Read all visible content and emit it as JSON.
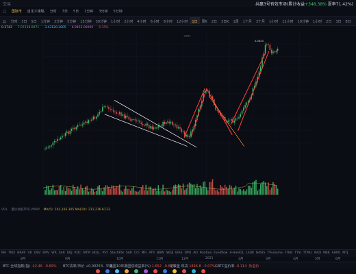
{
  "topbar": {
    "brand": "交易",
    "announcement": "共赢3号有效市场(累计收益",
    "ann_gain": "+348.38%",
    "ann_tail": " 夏率71.42%)"
  },
  "menubar": [
    "□",
    "国际市",
    "自定义策略",
    "分时",
    "3日",
    "5日",
    "1分钟",
    "3分钟",
    "5分钟"
  ],
  "timeframes": {
    "items": [
      "分时",
      "3日",
      "5日",
      "1分钟",
      "3分钟",
      "5分钟",
      "15分钟",
      "30分钟",
      "1小时",
      "2小时",
      "4小时",
      "6小时",
      "8小时",
      "12小时",
      "1日",
      "周K",
      "2日",
      "3日K",
      "1周",
      "1个月",
      "3个月",
      "1小时",
      "12小时",
      "10分钟",
      "1小时",
      "2日",
      "3日",
      "8日"
    ],
    "active_index": 14
  },
  "indicator_row": [
    "0.3743",
    "7.07110.0071",
    "3.43120.3005",
    "6.9453.00000",
    "6.35%"
  ],
  "chart": {
    "peak_label": "0.0824",
    "year_label": "2021"
  },
  "volume_header": {
    "left": "VOL",
    "middle": "量价加权平均 VWAP",
    "ma": "MA(5): 161,103.305  MA(10): 211,216.6113"
  },
  "indicator_tabs": [
    "MA",
    "TRIX",
    "BRAR",
    "VR",
    "OBV",
    "EMV",
    "WR",
    "SAR",
    "KDJ",
    "ROC",
    "MTM",
    "BOLL",
    "PSY",
    "StochRSI",
    "SAR",
    "CCI",
    "MFI",
    "ATR",
    "BBW",
    "SKDJ",
    "BIAS",
    "DPO",
    "AO",
    "Position",
    "Fundflow",
    "A-HwVOL",
    "LSUR",
    "BASIS",
    "TVvolume",
    "FTBB",
    "TTSI",
    "TTMU",
    "AVDI",
    "MIJK",
    "AHPO",
    "MTJ"
  ],
  "months": [
    "8月",
    "9月",
    "10月",
    "11月",
    "12月",
    "2021",
    "2月",
    "3月",
    "4月",
    "5月",
    "6月"
  ],
  "statusbar": [
    {
      "label": "BTC 全球指数(指)",
      "value": "-42.46",
      "pct": "-0.69%",
      "dir": "down"
    },
    {
      "label": "BTC贵率/市价",
      "value": "+0.0025%",
      "pct": "平稳",
      "dir": "flat"
    },
    {
      "label": "美国10年期国债收益率(%)",
      "value": "1.652",
      "pct": "-0.62%",
      "dir": "down"
    },
    {
      "label": "伦敦金 现货",
      "value": "1896.8",
      "pct": "-0.07%",
      "dir": "down"
    },
    {
      "label": "GBTC溢价率",
      "value": "-0.114",
      "pct": "负溢价",
      "dir": "down"
    }
  ],
  "colors": {
    "up": "#3fbf6b",
    "down": "#e0534a",
    "trend_red": "#ff3b3b",
    "trend_white": "#e8e8e8",
    "trend_orange": "#ff8a3d"
  },
  "dock_colors": [
    "#e0534a",
    "#3a7be0",
    "#4cc3ff",
    "#f0a63a",
    "#3fbf6b",
    "#9b59d6",
    "#e0534a",
    "#3a7be0",
    "#f0c43a",
    "#e0534a",
    "#2ab0d8",
    "#e0534a"
  ]
}
